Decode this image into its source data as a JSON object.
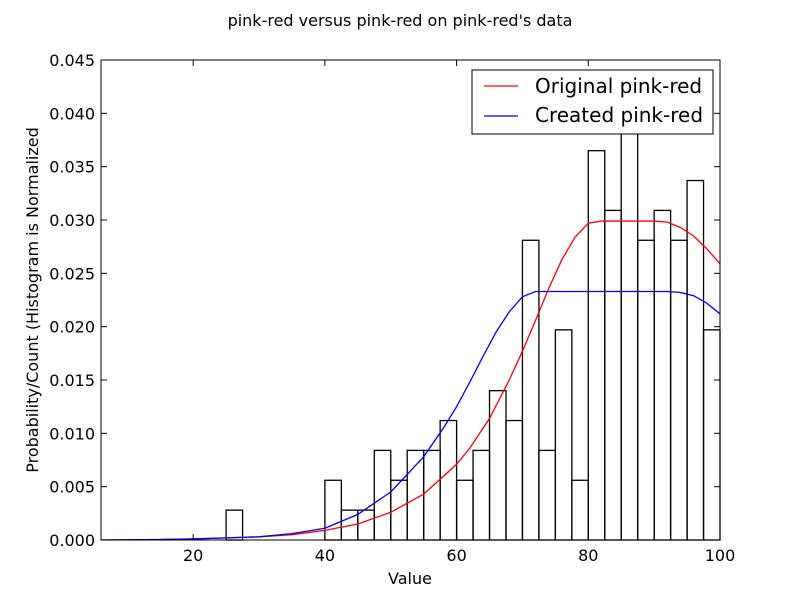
{
  "chart_data": {
    "type": "histogram+line",
    "title": "pink-red versus pink-red on pink-red's data",
    "xlabel": "Value",
    "ylabel": "Probability/Count (Histogram is Normalized",
    "xlim": [
      6,
      100
    ],
    "ylim": [
      0,
      0.045
    ],
    "x_ticks": [
      20,
      40,
      60,
      80,
      100
    ],
    "y_ticks": [
      0.0,
      0.005,
      0.01,
      0.015,
      0.02,
      0.025,
      0.03,
      0.035,
      0.04,
      0.045
    ],
    "x_tick_labels": [
      "20",
      "40",
      "60",
      "80",
      "100"
    ],
    "y_tick_labels": [
      "0.000",
      "0.005",
      "0.010",
      "0.015",
      "0.020",
      "0.025",
      "0.030",
      "0.035",
      "0.040",
      "0.045"
    ],
    "grid": false,
    "legend_position": "top-right",
    "histogram": {
      "bin_width": 2.5,
      "bins": [
        {
          "start": 25.0,
          "value": 0.0028
        },
        {
          "start": 40.0,
          "value": 0.0056
        },
        {
          "start": 42.5,
          "value": 0.0028
        },
        {
          "start": 45.0,
          "value": 0.0028
        },
        {
          "start": 47.5,
          "value": 0.0084
        },
        {
          "start": 50.0,
          "value": 0.0056
        },
        {
          "start": 52.5,
          "value": 0.0084
        },
        {
          "start": 55.0,
          "value": 0.0084
        },
        {
          "start": 57.5,
          "value": 0.0112
        },
        {
          "start": 60.0,
          "value": 0.0056
        },
        {
          "start": 62.5,
          "value": 0.0084
        },
        {
          "start": 65.0,
          "value": 0.014
        },
        {
          "start": 67.5,
          "value": 0.0112
        },
        {
          "start": 70.0,
          "value": 0.0281
        },
        {
          "start": 72.5,
          "value": 0.0084
        },
        {
          "start": 75.0,
          "value": 0.0197
        },
        {
          "start": 77.5,
          "value": 0.0056
        },
        {
          "start": 80.0,
          "value": 0.0365
        },
        {
          "start": 82.5,
          "value": 0.0309
        },
        {
          "start": 85.0,
          "value": 0.0393
        },
        {
          "start": 87.5,
          "value": 0.0281
        },
        {
          "start": 90.0,
          "value": 0.0309
        },
        {
          "start": 92.5,
          "value": 0.0281
        },
        {
          "start": 95.0,
          "value": 0.0337
        },
        {
          "start": 97.5,
          "value": 0.0197
        }
      ]
    },
    "series": [
      {
        "name": "Original pink-red",
        "color": "#ff0000",
        "x": [
          6,
          10,
          15,
          20,
          25,
          30,
          35,
          40,
          45,
          50,
          55,
          60,
          62,
          65,
          68,
          70,
          72,
          74,
          76,
          78,
          80,
          82,
          84,
          86,
          88,
          90,
          92,
          94,
          96,
          98,
          100
        ],
        "y": [
          0.0,
          2e-05,
          5e-05,
          0.0001,
          0.0002,
          0.0003,
          0.0005,
          0.0009,
          0.0015,
          0.0026,
          0.0043,
          0.0071,
          0.0086,
          0.0114,
          0.015,
          0.0177,
          0.0206,
          0.0236,
          0.0263,
          0.0284,
          0.0297,
          0.0299,
          0.0299,
          0.0299,
          0.0299,
          0.0299,
          0.0298,
          0.0293,
          0.0285,
          0.0273,
          0.0259
        ]
      },
      {
        "name": "Created pink-red",
        "color": "#0000ff",
        "x": [
          6,
          10,
          15,
          20,
          25,
          30,
          35,
          40,
          45,
          50,
          55,
          58,
          60,
          62,
          64,
          66,
          68,
          70,
          72,
          74,
          76,
          78,
          80,
          85,
          90,
          92,
          94,
          96,
          98,
          100
        ],
        "y": [
          0.0,
          2e-05,
          5e-05,
          0.0001,
          0.0002,
          0.0003,
          0.0006,
          0.0011,
          0.0024,
          0.0045,
          0.0078,
          0.0105,
          0.0125,
          0.0148,
          0.0172,
          0.0195,
          0.0214,
          0.0228,
          0.0233,
          0.0233,
          0.0233,
          0.0233,
          0.0233,
          0.0233,
          0.0233,
          0.0233,
          0.0232,
          0.0229,
          0.0222,
          0.0212
        ]
      }
    ]
  }
}
